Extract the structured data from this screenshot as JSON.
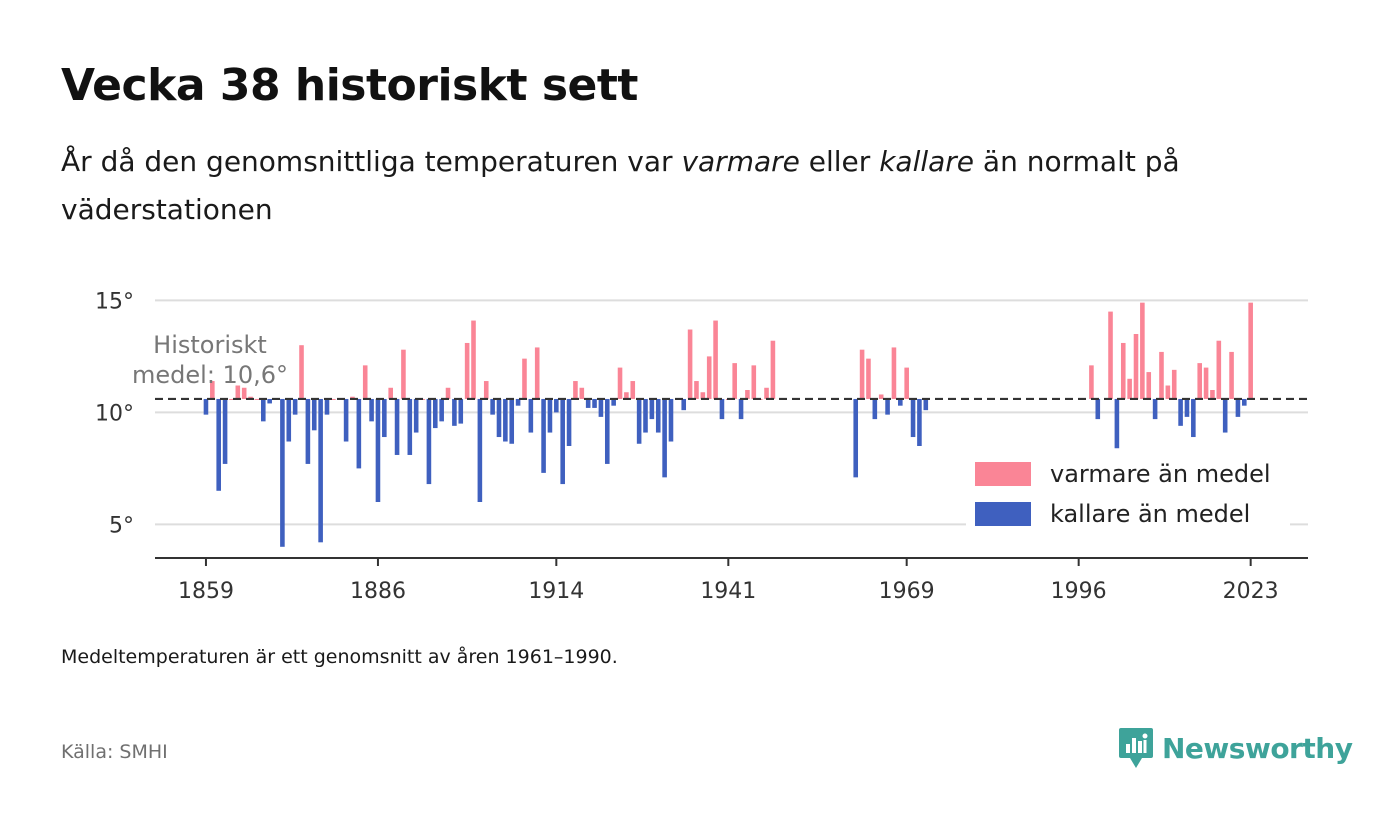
{
  "header": {
    "title": "Vecka 38 historiskt sett",
    "subtitle_part1": "År då den genomsnittliga temperaturen var ",
    "subtitle_em1": "varmare",
    "subtitle_part2": " eller ",
    "subtitle_em2": "kallare",
    "subtitle_part3": " än normalt på väderstationen"
  },
  "footer": {
    "note": "Medeltemperaturen är ett genomsnitt av åren 1961–1990.",
    "source": "Källa: SMHI",
    "brand": "Newsworthy"
  },
  "colors": {
    "warmer": "#fa8596",
    "colder": "#3f60bf",
    "mean_line": "#333333",
    "grid": "#dddddd",
    "brand": "#3ea39a"
  },
  "icons": {
    "brand_logo": "newsworthy-logo-icon"
  },
  "chart_data": {
    "type": "bar",
    "mean": 10.6,
    "mean_label_line1": "Historiskt",
    "mean_label_line2": "medel: 10,6°",
    "ylim": [
      3.5,
      16
    ],
    "xlim": [
      1851,
      2032
    ],
    "y_ticks": [
      5,
      10,
      15
    ],
    "y_tick_labels": [
      "5°",
      "10°",
      "15°"
    ],
    "x_ticks": [
      1859,
      1886,
      1914,
      1941,
      1969,
      1996,
      2023
    ],
    "x_tick_labels": [
      "1859",
      "1886",
      "1914",
      "1941",
      "1969",
      "1996",
      "2023"
    ],
    "legend": {
      "placement": "bottom-right",
      "warmer_label": "varmare än medel",
      "colder_label": "kallare än medel"
    },
    "years": [
      1859,
      1860,
      1861,
      1862,
      1863,
      1864,
      1865,
      1866,
      1867,
      1868,
      1869,
      1870,
      1871,
      1872,
      1873,
      1874,
      1875,
      1876,
      1877,
      1878,
      1879,
      1880,
      1881,
      1882,
      1883,
      1884,
      1885,
      1886,
      1887,
      1888,
      1889,
      1890,
      1891,
      1892,
      1893,
      1894,
      1895,
      1896,
      1897,
      1898,
      1899,
      1900,
      1901,
      1902,
      1903,
      1904,
      1905,
      1906,
      1907,
      1908,
      1909,
      1910,
      1911,
      1912,
      1913,
      1914,
      1915,
      1916,
      1917,
      1918,
      1919,
      1920,
      1921,
      1922,
      1923,
      1924,
      1925,
      1926,
      1927,
      1928,
      1929,
      1930,
      1931,
      1932,
      1933,
      1934,
      1935,
      1936,
      1937,
      1938,
      1939,
      1940,
      1941,
      1942,
      1943,
      1944,
      1945,
      1946,
      1947,
      1948,
      1961,
      1962,
      1963,
      1964,
      1965,
      1966,
      1967,
      1968,
      1969,
      1970,
      1971,
      1972,
      1998,
      1999,
      2001,
      2002,
      2003,
      2004,
      2005,
      2006,
      2007,
      2008,
      2009,
      2010,
      2011,
      2012,
      2013,
      2014,
      2015,
      2016,
      2017,
      2018,
      2019,
      2020,
      2021,
      2022,
      2023
    ],
    "values": [
      9.9,
      11.4,
      6.5,
      7.7,
      10.6,
      11.2,
      11.1,
      10.7,
      10.6,
      9.6,
      10.4,
      10.6,
      4.0,
      8.7,
      9.9,
      13.0,
      7.7,
      9.2,
      4.2,
      9.9,
      10.6,
      10.6,
      8.7,
      10.7,
      7.5,
      12.1,
      9.6,
      6.0,
      8.9,
      11.1,
      8.1,
      12.8,
      8.1,
      9.1,
      10.6,
      6.8,
      9.3,
      9.6,
      11.1,
      9.4,
      9.5,
      13.1,
      14.1,
      6.0,
      11.4,
      9.9,
      8.9,
      8.7,
      8.6,
      10.3,
      12.4,
      9.1,
      12.9,
      7.3,
      9.1,
      10.0,
      6.8,
      8.5,
      11.4,
      11.1,
      10.2,
      10.2,
      9.8,
      7.7,
      10.3,
      12.0,
      10.9,
      11.4,
      8.6,
      9.1,
      9.7,
      9.1,
      7.1,
      8.7,
      10.6,
      10.1,
      13.7,
      11.4,
      10.9,
      12.5,
      14.1,
      9.7,
      10.6,
      12.2,
      9.7,
      11.0,
      12.1,
      10.6,
      11.1,
      13.2,
      7.1,
      12.8,
      12.4,
      9.7,
      10.8,
      9.9,
      12.9,
      10.3,
      12.0,
      8.9,
      8.5,
      10.1,
      12.1,
      9.7,
      14.5,
      8.4,
      13.1,
      11.5,
      13.5,
      14.9,
      11.8,
      9.7,
      12.7,
      11.2,
      11.9,
      9.4,
      9.8,
      8.9,
      12.2,
      12.0,
      11.0,
      13.2,
      9.1,
      12.7,
      9.8,
      10.3,
      14.9
    ]
  }
}
